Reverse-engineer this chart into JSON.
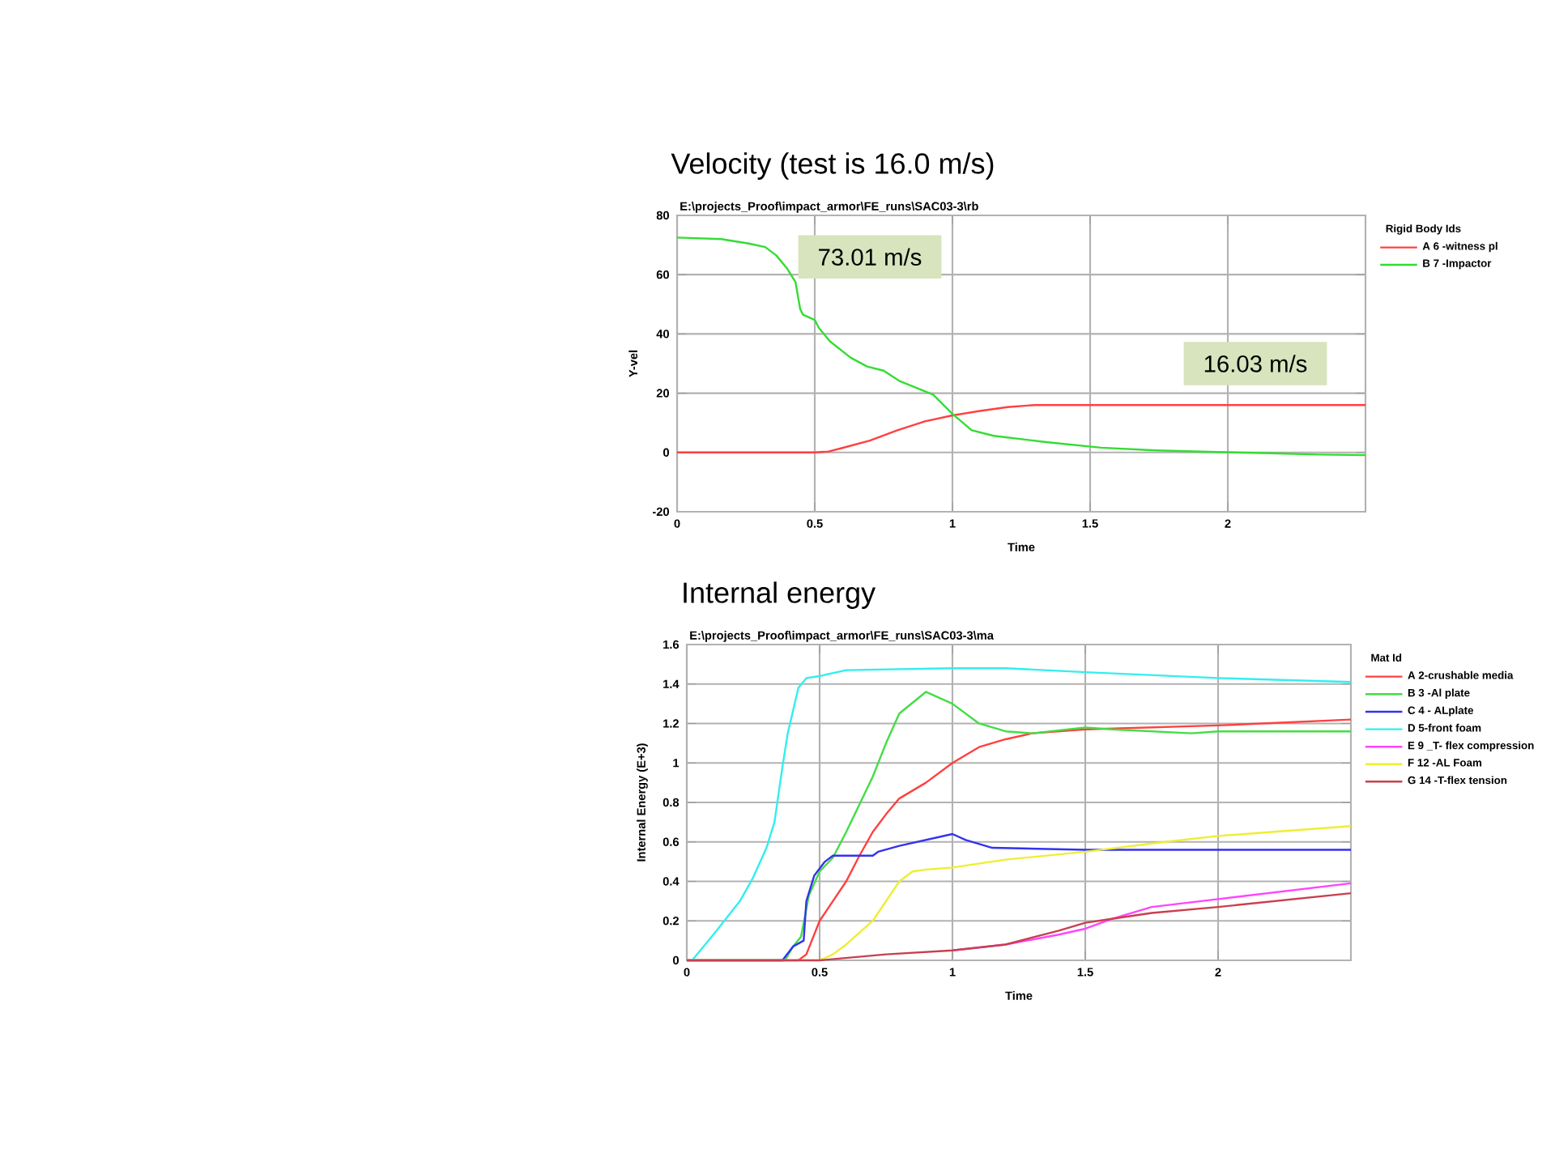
{
  "chart_data": [
    {
      "type": "line",
      "title": "Velocity (test is 16.0 m/s)",
      "subtitle": "E:\\projects_Proof\\impact_armor\\FE_runs\\SAC03-3\\rb",
      "xlabel": "Time",
      "ylabel": "Y-vel",
      "legend_title": "Rigid Body Ids",
      "xlim": [
        0,
        2.5
      ],
      "ylim": [
        -20,
        80
      ],
      "xticks": [
        0,
        0.5,
        1,
        1.5,
        2
      ],
      "yticks": [
        -20,
        0,
        20,
        40,
        60,
        80
      ],
      "grid": true,
      "legend": "right",
      "series": [
        {
          "name": "A  6 -witness pl",
          "color": "#ff4040",
          "x": [
            0,
            0.5,
            0.55,
            0.6,
            0.7,
            0.8,
            0.9,
            1.0,
            1.1,
            1.2,
            1.3,
            1.5,
            2.0,
            2.5
          ],
          "values": [
            0,
            0,
            0.3,
            1.5,
            4,
            7.5,
            10.5,
            12.5,
            14,
            15.3,
            16,
            16,
            16,
            16
          ]
        },
        {
          "name": "B  7 -Impactor",
          "color": "#33dd33",
          "x": [
            0,
            0.16,
            0.26,
            0.32,
            0.36,
            0.4,
            0.43,
            0.447,
            0.457,
            0.5,
            0.515,
            0.555,
            0.63,
            0.69,
            0.75,
            0.81,
            0.93,
            1.0,
            1.07,
            1.15,
            1.34,
            1.54,
            1.74,
            1.93,
            2.13,
            2.33,
            2.5
          ],
          "values": [
            72.5,
            72,
            70.5,
            69.3,
            66.5,
            62,
            57.5,
            48.4,
            46.5,
            44.7,
            42,
            37.5,
            32,
            29,
            27.6,
            24,
            19.5,
            13,
            7.5,
            5.6,
            3.5,
            1.6,
            0.7,
            0.2,
            -0.2,
            -0.7,
            -0.9
          ]
        }
      ],
      "annotations": [
        "73.01 m/s",
        "16.03 m/s"
      ]
    },
    {
      "type": "line",
      "title": "Internal energy",
      "subtitle": "E:\\projects_Proof\\impact_armor\\FE_runs\\SAC03-3\\ma",
      "xlabel": "Time",
      "ylabel": "Internal Energy (E+3)",
      "legend_title": "Mat Id",
      "xlim": [
        0,
        2.5
      ],
      "ylim": [
        0,
        1.6
      ],
      "xticks": [
        0,
        0.5,
        1,
        1.5,
        2
      ],
      "yticks": [
        0,
        0.2,
        0.4,
        0.6,
        0.8,
        1,
        1.2,
        1.4,
        1.6
      ],
      "grid": true,
      "legend": "right",
      "series": [
        {
          "name": "A  2-crushable media",
          "color": "#ff4040",
          "x": [
            0,
            0.42,
            0.45,
            0.5,
            0.55,
            0.6,
            0.65,
            0.7,
            0.75,
            0.8,
            0.9,
            1.0,
            1.1,
            1.2,
            1.3,
            1.5,
            2.0,
            2.5
          ],
          "values": [
            0,
            0,
            0.03,
            0.2,
            0.3,
            0.4,
            0.53,
            0.65,
            0.74,
            0.82,
            0.9,
            1.0,
            1.08,
            1.12,
            1.15,
            1.17,
            1.19,
            1.22
          ]
        },
        {
          "name": "B  3 -Al plate",
          "color": "#44dd44",
          "x": [
            0,
            0.37,
            0.4,
            0.43,
            0.46,
            0.5,
            0.55,
            0.6,
            0.7,
            0.75,
            0.8,
            0.9,
            1.0,
            1.1,
            1.2,
            1.3,
            1.5,
            1.6,
            1.9,
            2.0,
            2.5
          ],
          "values": [
            0,
            0,
            0.07,
            0.12,
            0.33,
            0.45,
            0.52,
            0.65,
            0.93,
            1.1,
            1.25,
            1.36,
            1.3,
            1.2,
            1.16,
            1.15,
            1.18,
            1.17,
            1.15,
            1.16,
            1.16
          ]
        },
        {
          "name": "C  4 - ALplate",
          "color": "#3333ee",
          "x": [
            0,
            0.36,
            0.4,
            0.44,
            0.45,
            0.48,
            0.52,
            0.55,
            0.7,
            0.72,
            0.8,
            0.9,
            1.0,
            1.05,
            1.15,
            1.5,
            2.5
          ],
          "values": [
            0,
            0,
            0.07,
            0.1,
            0.3,
            0.43,
            0.5,
            0.53,
            0.53,
            0.55,
            0.58,
            0.61,
            0.64,
            0.61,
            0.57,
            0.56,
            0.56
          ]
        },
        {
          "name": "D  5-front foam",
          "color": "#33eeee",
          "x": [
            0.02,
            0.1,
            0.2,
            0.25,
            0.3,
            0.33,
            0.36,
            0.38,
            0.42,
            0.45,
            0.5,
            0.6,
            1.0,
            1.2,
            1.5,
            2.0,
            2.5
          ],
          "values": [
            0,
            0.13,
            0.3,
            0.42,
            0.57,
            0.7,
            0.98,
            1.15,
            1.38,
            1.43,
            1.44,
            1.47,
            1.48,
            1.48,
            1.46,
            1.43,
            1.41
          ]
        },
        {
          "name": "E  9 _T- flex compression",
          "color": "#ff44ff",
          "x": [
            1.0,
            1.2,
            1.4,
            1.5,
            1.6,
            1.75,
            2.0,
            2.5
          ],
          "values": [
            0.05,
            0.08,
            0.13,
            0.16,
            0.21,
            0.27,
            0.31,
            0.39
          ]
        },
        {
          "name": "F  12 -AL Foam",
          "color": "#eeee33",
          "x": [
            0,
            0.5,
            0.55,
            0.6,
            0.7,
            0.8,
            0.85,
            0.9,
            1.0,
            1.2,
            1.5,
            1.8,
            2.0,
            2.2,
            2.5
          ],
          "values": [
            0,
            0,
            0.03,
            0.08,
            0.2,
            0.4,
            0.45,
            0.46,
            0.47,
            0.51,
            0.55,
            0.6,
            0.63,
            0.65,
            0.68
          ]
        },
        {
          "name": "G  14 -T-flex tension",
          "color": "#c8404f",
          "x": [
            0,
            0.5,
            0.75,
            1.0,
            1.2,
            1.4,
            1.5,
            1.6,
            1.75,
            2.0,
            2.5
          ],
          "values": [
            0,
            0,
            0.03,
            0.05,
            0.08,
            0.15,
            0.19,
            0.21,
            0.24,
            0.27,
            0.34
          ]
        }
      ]
    }
  ]
}
